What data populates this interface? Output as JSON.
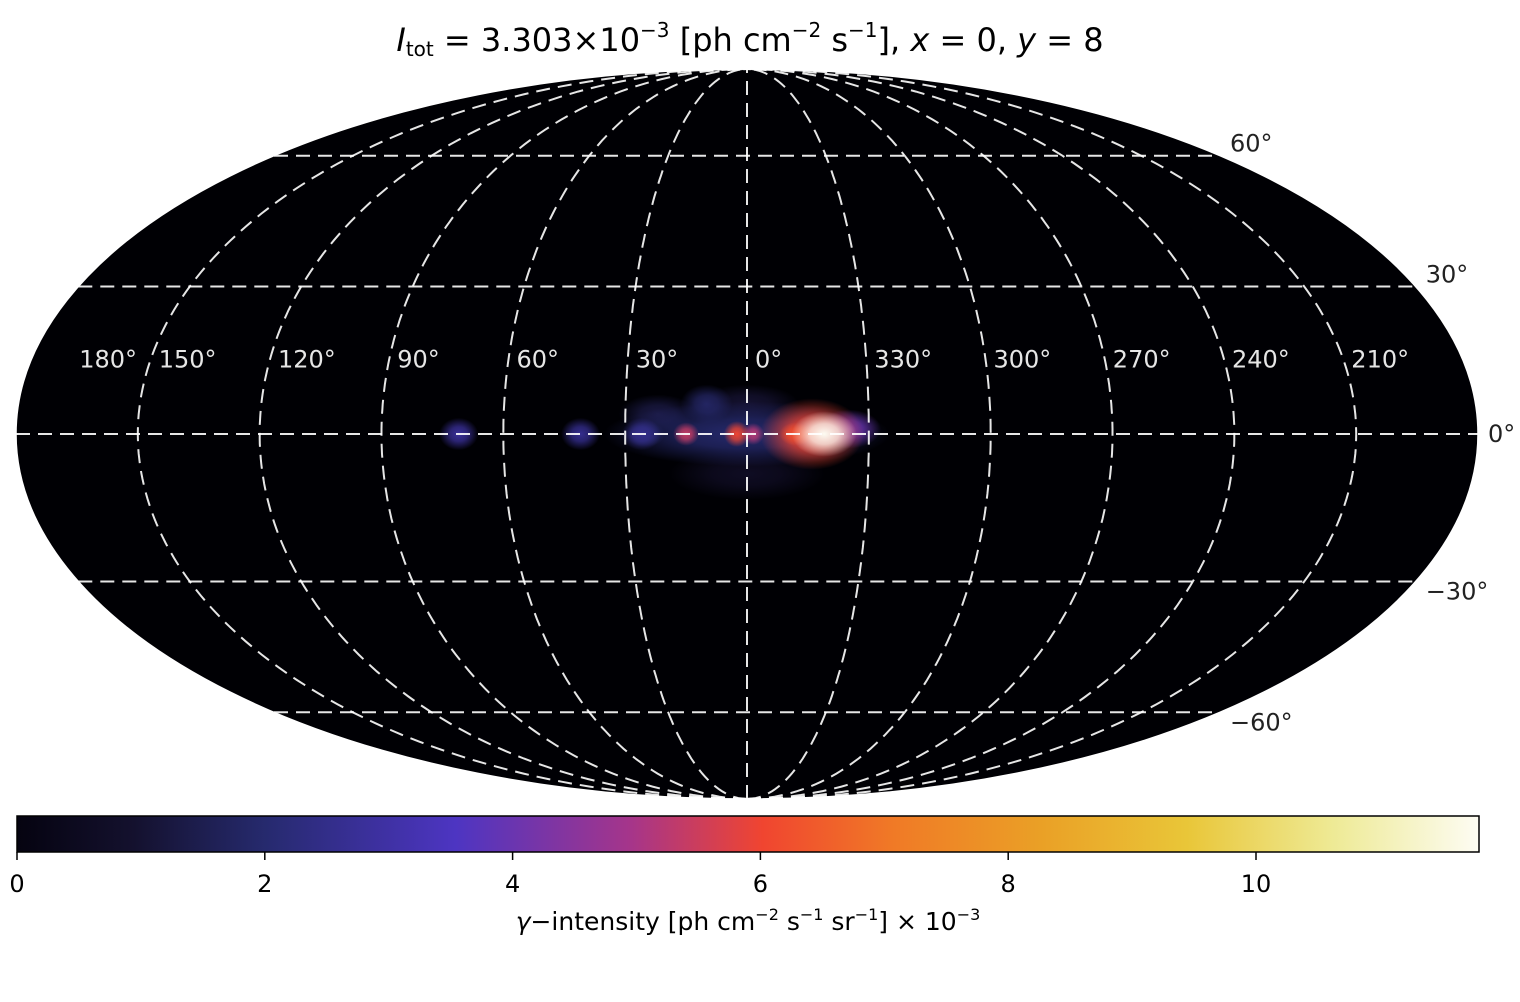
{
  "chart_data": {
    "type": "heatmap",
    "projection": "mollweide",
    "title": {
      "lhs_symbol": "I",
      "lhs_sub": "tot",
      "equals": " = ",
      "value_mantissa": "3.303×10",
      "value_exponent": "−3",
      "unit_open": " [ph cm",
      "unit_exp1": "−2",
      "unit_mid": " s",
      "unit_exp2": "−1",
      "unit_close": "], ",
      "x_symbol": "x",
      "x_value": " = 0, ",
      "y_symbol": "y",
      "y_value": " = 8"
    },
    "longitude_ticks": [
      "180°",
      "150°",
      "120°",
      "90°",
      "60°",
      "30°",
      "0°",
      "330°",
      "300°",
      "270°",
      "240°",
      "210°"
    ],
    "longitude_values": [
      180,
      150,
      120,
      90,
      60,
      30,
      0,
      -30,
      -60,
      -90,
      -120,
      -150
    ],
    "latitude_ticks": [
      "60°",
      "30°",
      "0°",
      "−30°",
      "−60°"
    ],
    "latitude_values": [
      60,
      30,
      0,
      -30,
      -60
    ],
    "grid": true,
    "colormap": "inferno",
    "colorbar": {
      "range": [
        0,
        11.8
      ],
      "ticks": [
        0,
        2,
        4,
        6,
        8,
        10
      ],
      "tick_labels": [
        "0",
        "2",
        "4",
        "6",
        "8",
        "10"
      ],
      "label": {
        "symbol": "γ",
        "text": "−intensity [ph cm",
        "exp1": "−2",
        "mid1": " s",
        "exp2": "−1",
        "mid2": " sr",
        "exp3": "−1",
        "tail": "] × 10",
        "exp4": "−3"
      }
    },
    "sources": [
      {
        "lon": -19,
        "lat": 0,
        "intensity": 11.8,
        "sigma_lon": 5,
        "sigma_lat": 3.5
      },
      {
        "lon": -16,
        "lat": 0,
        "intensity": 6.0,
        "sigma_lon": 8,
        "sigma_lat": 5.5
      },
      {
        "lon": -25,
        "lat": 1,
        "intensity": 4.0,
        "sigma_lon": 5,
        "sigma_lat": 3
      },
      {
        "lon": -12,
        "lat": 0,
        "intensity": 6.2,
        "sigma_lon": 2.5,
        "sigma_lat": 1.8
      },
      {
        "lon": -1.5,
        "lat": 0,
        "intensity": 5.2,
        "sigma_lon": 1.7,
        "sigma_lat": 1.7
      },
      {
        "lon": 2.5,
        "lat": 0,
        "intensity": 6.0,
        "sigma_lon": 2,
        "sigma_lat": 2
      },
      {
        "lon": 15,
        "lat": 0,
        "intensity": 5.4,
        "sigma_lon": 2,
        "sigma_lat": 1.8
      },
      {
        "lon": 25,
        "lat": 0,
        "intensity": 1.8,
        "sigma_lon": 3,
        "sigma_lat": 2
      },
      {
        "lon": 26,
        "lat": 0,
        "intensity": 2.5,
        "sigma_lon": 3,
        "sigma_lat": 2.5
      },
      {
        "lon": 41,
        "lat": 0,
        "intensity": 2.6,
        "sigma_lon": 3,
        "sigma_lat": 2.5
      },
      {
        "lon": 71,
        "lat": 0,
        "intensity": 2.8,
        "sigma_lon": 3,
        "sigma_lat": 2.5
      },
      {
        "lon": 0,
        "lat": 0,
        "intensity": 2.0,
        "sigma_lon": 22,
        "sigma_lat": 5
      },
      {
        "lon": 10,
        "lat": 6,
        "intensity": 1.8,
        "sigma_lon": 4,
        "sigma_lat": 3
      },
      {
        "lon": 0,
        "lat": 6,
        "intensity": 1.0,
        "sigma_lon": 8,
        "sigma_lat": 3
      },
      {
        "lon": 22,
        "lat": 4,
        "intensity": 1.3,
        "sigma_lon": 6,
        "sigma_lat": 3
      },
      {
        "lon": 0,
        "lat": -8,
        "intensity": 0.6,
        "sigma_lon": 12,
        "sigma_lat": 4
      }
    ]
  }
}
